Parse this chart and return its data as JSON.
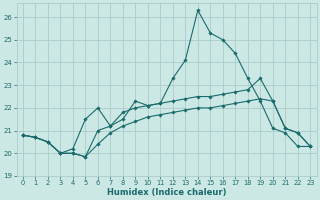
{
  "xlabel": "Humidex (Indice chaleur)",
  "bg_color": "#cce8e4",
  "grid_color": "#aacccc",
  "line_color": "#1a6b6b",
  "xlim": [
    -0.5,
    23.5
  ],
  "ylim": [
    19.0,
    26.6
  ],
  "yticks": [
    19,
    20,
    21,
    22,
    23,
    24,
    25,
    26
  ],
  "xticks": [
    0,
    1,
    2,
    3,
    4,
    5,
    6,
    7,
    8,
    9,
    10,
    11,
    12,
    13,
    14,
    15,
    16,
    17,
    18,
    19,
    20,
    21,
    22,
    23
  ],
  "line1_x": [
    0,
    1,
    2,
    3,
    4,
    5,
    6,
    7,
    8,
    9,
    10,
    11,
    12,
    13,
    14,
    15,
    16,
    17,
    18,
    19,
    20,
    21,
    22,
    23
  ],
  "line1_y": [
    20.8,
    20.7,
    20.5,
    20.0,
    20.0,
    19.85,
    21.0,
    21.2,
    21.5,
    22.3,
    22.1,
    22.2,
    23.3,
    24.1,
    26.3,
    25.3,
    25.0,
    24.4,
    23.3,
    22.3,
    21.1,
    20.9,
    20.3,
    20.3
  ],
  "line2_x": [
    0,
    1,
    2,
    3,
    4,
    5,
    6,
    7,
    8,
    9,
    10,
    11,
    12,
    13,
    14,
    15,
    16,
    17,
    18,
    19,
    20,
    21,
    22,
    23
  ],
  "line2_y": [
    20.8,
    20.7,
    20.5,
    20.0,
    20.2,
    21.5,
    22.0,
    21.2,
    21.8,
    22.0,
    22.1,
    22.2,
    22.3,
    22.4,
    22.5,
    22.5,
    22.6,
    22.7,
    22.8,
    23.3,
    22.3,
    21.1,
    20.9,
    20.3
  ],
  "line3_x": [
    0,
    1,
    2,
    3,
    4,
    5,
    6,
    7,
    8,
    9,
    10,
    11,
    12,
    13,
    14,
    15,
    16,
    17,
    18,
    19,
    20,
    21,
    22,
    23
  ],
  "line3_y": [
    20.8,
    20.7,
    20.5,
    20.0,
    20.0,
    19.85,
    20.4,
    20.9,
    21.2,
    21.4,
    21.6,
    21.7,
    21.8,
    21.9,
    22.0,
    22.0,
    22.1,
    22.2,
    22.3,
    22.4,
    22.3,
    21.1,
    20.9,
    20.3
  ]
}
